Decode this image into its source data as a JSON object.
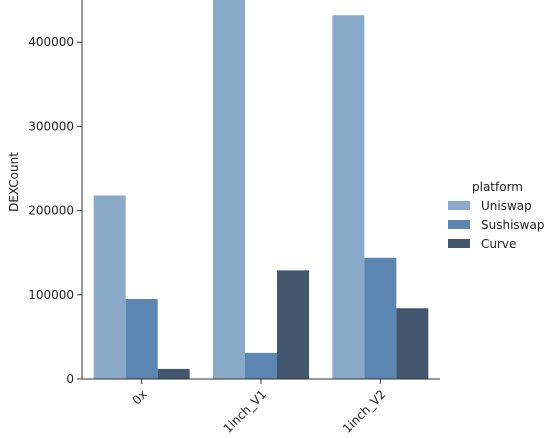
{
  "chart_data": {
    "type": "bar",
    "categories": [
      "0x",
      "1inch_V1",
      "1inch_V2"
    ],
    "series": [
      {
        "name": "Uniswap",
        "values": [
          218000,
          460000,
          432000
        ],
        "color": "#88a9c8"
      },
      {
        "name": "Sushiswap",
        "values": [
          95000,
          31000,
          144000
        ],
        "color": "#5a86b1"
      },
      {
        "name": "Curve",
        "values": [
          12000,
          129000,
          84000
        ],
        "color": "#42566d"
      }
    ],
    "ylabel": "DEXCount",
    "xlabel": "",
    "yticks": [
      0,
      100000,
      200000,
      300000,
      400000
    ],
    "ylim": [
      0,
      450000
    ],
    "legend": {
      "title": "platform",
      "placement": "right"
    },
    "grid": false
  }
}
